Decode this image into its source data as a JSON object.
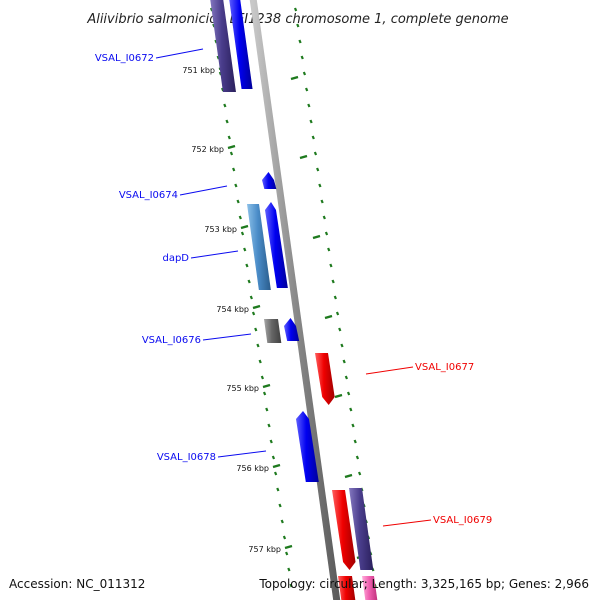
{
  "title": "Aliivibrio salmonicida LFI1238 chromosome 1, complete genome",
  "accession_text": "Accession: NC_011312",
  "summary_text": "Topology: circular; Length: 3,325,165 bp; Genes: 2,966",
  "colors": {
    "forward_gene": "#0a0af0",
    "reverse_gene": "#f00000",
    "rna_like": "#4a8cc8",
    "dark_purple": "#4a3d8c",
    "gray_gene": "#666666",
    "pink_gene": "#f060b0",
    "tick_green": "#1e7a1e",
    "backbone": "#8a8a8a"
  },
  "ticks": [
    {
      "label": "751 kbp"
    },
    {
      "label": "752 kbp"
    },
    {
      "label": "753 kbp"
    },
    {
      "label": "754 kbp"
    },
    {
      "label": "755 kbp"
    },
    {
      "label": "756 kbp"
    },
    {
      "label": "757 kbp"
    }
  ],
  "genes": [
    {
      "name": "VSAL_I0672",
      "side": "left"
    },
    {
      "name": "VSAL_I0674",
      "side": "left"
    },
    {
      "name": "dapD",
      "side": "left"
    },
    {
      "name": "VSAL_I0676",
      "side": "left"
    },
    {
      "name": "VSAL_I0677",
      "side": "right"
    },
    {
      "name": "VSAL_I0678",
      "side": "left"
    },
    {
      "name": "VSAL_I0679",
      "side": "right"
    }
  ]
}
